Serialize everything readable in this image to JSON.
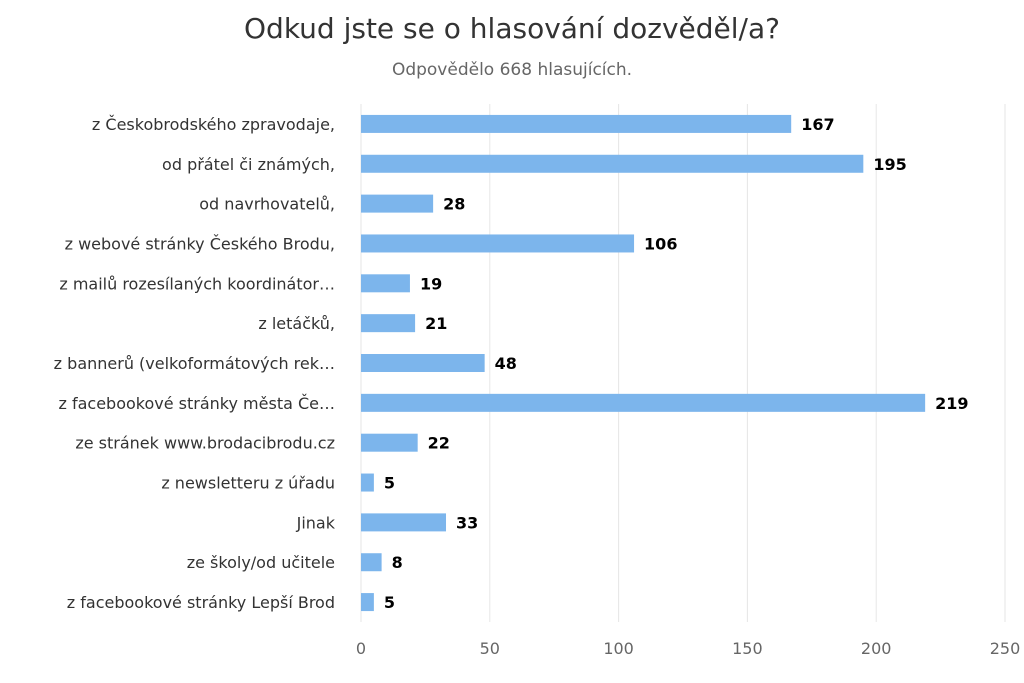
{
  "chart_data": {
    "type": "bar",
    "orientation": "horizontal",
    "title": "Odkud jste se o hlasování dozvěděl/a?",
    "subtitle": "Odpovědělo 668 hlasujících.",
    "categories": [
      "z Českobrodského zpravodaje,",
      "od přátel či známých,",
      "od navrhovatelů,",
      "z webové stránky Českého Brodu,",
      "z mailů rozesílaných koordinátor…",
      "z letáčků,",
      "z bannerů (velkoformátových rek…",
      "z facebookové stránky města Če…",
      "ze stránek www.brodacibrodu.cz",
      "z newsletteru z úřadu",
      "Jinak",
      "ze školy/od učitele",
      "z facebookové stránky Lepší Brod"
    ],
    "values": [
      167,
      195,
      28,
      106,
      19,
      21,
      48,
      219,
      22,
      5,
      33,
      8,
      5
    ],
    "xlim": [
      0,
      250
    ],
    "xticks": [
      "0",
      "50",
      "100",
      "150",
      "200",
      "250"
    ],
    "grid": true,
    "bar_color": "#7cb5ec",
    "show_data_labels": true
  }
}
